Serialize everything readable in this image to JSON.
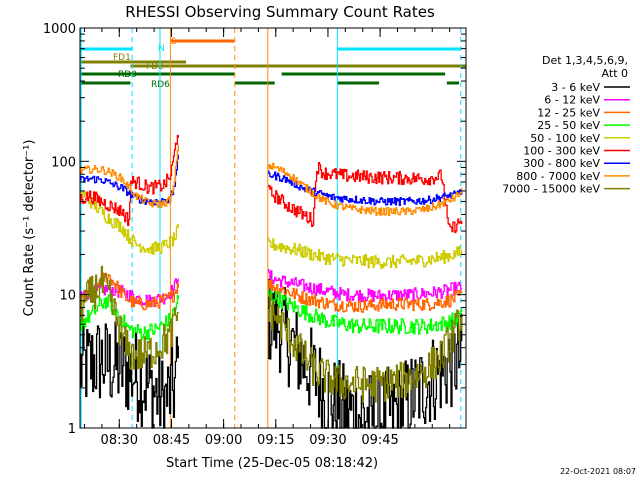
{
  "chart_data": {
    "type": "line",
    "title": "RHESSI Observing Summary Count Rates",
    "xlabel": "Start Time (25-Dec-05 08:18:42)",
    "ylabel": "Count Rate (s⁻¹ detector⁻¹)",
    "y_scale": "log",
    "ylim": [
      1,
      1000
    ],
    "y_ticks": [
      "1",
      "10",
      "100",
      "1000"
    ],
    "xlim_minutes_from_start": [
      0,
      111
    ],
    "x_ticks": [
      {
        "label": "08:30",
        "minute": 11.3
      },
      {
        "label": "08:45",
        "minute": 26.3
      },
      {
        "label": "09:00",
        "minute": 41.3
      },
      {
        "label": "09:15",
        "minute": 56.3
      },
      {
        "label": "09:30",
        "minute": 71.3
      },
      {
        "label": "09:45",
        "minute": 86.3
      }
    ],
    "legend": {
      "header": [
        "Det 1,3,4,5,6,9,",
        "Att 0"
      ],
      "placement": "right"
    },
    "gaps_minutes": [
      [
        28.5,
        54.0
      ]
    ],
    "series": [
      {
        "name": "3 - 6 keV",
        "color": "#000000",
        "noise": 0.35,
        "points": [
          [
            0,
            2.8
          ],
          [
            5,
            3.2
          ],
          [
            12,
            2.8
          ],
          [
            16,
            2.5
          ],
          [
            20,
            2.0
          ],
          [
            24,
            1.6
          ],
          [
            27,
            2.0
          ],
          [
            28,
            3
          ],
          [
            54,
            6.5
          ],
          [
            57,
            6.0
          ],
          [
            60,
            4.5
          ],
          [
            64,
            3.2
          ],
          [
            68,
            2.3
          ],
          [
            72,
            1.6
          ],
          [
            78,
            1.3
          ],
          [
            85,
            1.2
          ],
          [
            92,
            1.4
          ],
          [
            98,
            2.0
          ],
          [
            104,
            2.7
          ],
          [
            108,
            3.2
          ],
          [
            110,
            3.4
          ]
        ]
      },
      {
        "name": "6 - 12 keV",
        "color": "#ff00ff",
        "noise": 0.05,
        "points": [
          [
            0,
            10
          ],
          [
            4,
            10.5
          ],
          [
            8,
            11
          ],
          [
            12,
            10.5
          ],
          [
            16,
            9.5
          ],
          [
            20,
            9
          ],
          [
            24,
            9.5
          ],
          [
            27,
            11
          ],
          [
            28,
            14
          ],
          [
            54,
            14
          ],
          [
            56,
            13
          ],
          [
            62,
            12
          ],
          [
            68,
            11
          ],
          [
            76,
            10
          ],
          [
            86,
            9.8
          ],
          [
            96,
            10
          ],
          [
            104,
            10.5
          ],
          [
            110,
            11.5
          ]
        ]
      },
      {
        "name": "12 - 25 keV",
        "color": "#ff6600",
        "noise": 0.05,
        "points": [
          [
            0,
            9
          ],
          [
            3,
            10
          ],
          [
            6,
            13
          ],
          [
            8,
            14
          ],
          [
            10,
            12
          ],
          [
            13,
            9.5
          ],
          [
            16,
            8.5
          ],
          [
            20,
            8.5
          ],
          [
            24,
            9
          ],
          [
            27,
            10
          ],
          [
            28,
            12
          ],
          [
            54,
            12
          ],
          [
            58,
            11
          ],
          [
            64,
            9.5
          ],
          [
            72,
            8.5
          ],
          [
            80,
            8.2
          ],
          [
            90,
            8.5
          ],
          [
            100,
            8.5
          ],
          [
            106,
            9
          ],
          [
            110,
            10
          ]
        ]
      },
      {
        "name": "25 - 50 keV",
        "color": "#00ff00",
        "noise": 0.06,
        "points": [
          [
            0,
            6
          ],
          [
            3,
            7
          ],
          [
            7,
            9
          ],
          [
            9,
            8.5
          ],
          [
            11,
            7
          ],
          [
            14,
            5.5
          ],
          [
            18,
            5.2
          ],
          [
            22,
            5.5
          ],
          [
            26,
            6.5
          ],
          [
            28,
            9
          ],
          [
            54,
            10
          ],
          [
            58,
            9
          ],
          [
            64,
            7.5
          ],
          [
            72,
            6.2
          ],
          [
            80,
            5.8
          ],
          [
            90,
            5.8
          ],
          [
            100,
            5.8
          ],
          [
            106,
            6.2
          ],
          [
            110,
            7
          ]
        ]
      },
      {
        "name": "50 - 100 keV",
        "color": "#cccc00",
        "noise": 0.05,
        "points": [
          [
            0,
            60
          ],
          [
            3,
            50
          ],
          [
            6,
            42
          ],
          [
            9,
            36
          ],
          [
            12,
            32
          ],
          [
            14,
            27
          ],
          [
            16,
            24
          ],
          [
            20,
            22
          ],
          [
            24,
            23
          ],
          [
            27,
            26
          ],
          [
            28,
            30
          ],
          [
            54,
            24
          ],
          [
            58,
            23
          ],
          [
            64,
            21
          ],
          [
            70,
            19
          ],
          [
            78,
            18
          ],
          [
            88,
            17.5
          ],
          [
            98,
            18
          ],
          [
            104,
            19
          ],
          [
            110,
            21
          ]
        ]
      },
      {
        "name": "100 - 300 keV",
        "color": "#ff0000",
        "noise": 0.05,
        "points": [
          [
            0,
            52
          ],
          [
            3,
            55
          ],
          [
            6,
            50
          ],
          [
            9,
            46
          ],
          [
            12,
            42
          ],
          [
            14,
            36
          ],
          [
            14.5,
            70
          ],
          [
            16,
            70
          ],
          [
            20,
            63
          ],
          [
            24,
            66
          ],
          [
            26,
            78
          ],
          [
            27,
            110
          ],
          [
            28,
            165
          ],
          [
            54,
            60
          ],
          [
            56,
            55
          ],
          [
            60,
            46
          ],
          [
            64,
            40
          ],
          [
            67,
            36
          ],
          [
            68,
            92
          ],
          [
            70,
            82
          ],
          [
            76,
            78
          ],
          [
            84,
            76
          ],
          [
            92,
            75
          ],
          [
            100,
            74
          ],
          [
            104,
            78
          ],
          [
            106,
            30
          ],
          [
            108,
            33
          ],
          [
            110,
            36
          ]
        ]
      },
      {
        "name": "300 - 800 keV",
        "color": "#0000ff",
        "noise": 0.03,
        "points": [
          [
            0,
            72
          ],
          [
            3,
            74
          ],
          [
            6,
            73
          ],
          [
            9,
            68
          ],
          [
            12,
            63
          ],
          [
            14,
            58
          ],
          [
            16,
            53
          ],
          [
            20,
            50
          ],
          [
            24,
            50
          ],
          [
            26,
            53
          ],
          [
            27,
            62
          ],
          [
            28,
            105
          ],
          [
            54,
            80
          ],
          [
            56,
            78
          ],
          [
            60,
            72
          ],
          [
            64,
            63
          ],
          [
            68,
            58
          ],
          [
            72,
            54
          ],
          [
            78,
            52
          ],
          [
            86,
            50
          ],
          [
            94,
            50
          ],
          [
            100,
            51
          ],
          [
            104,
            54
          ],
          [
            108,
            56
          ],
          [
            110,
            62
          ]
        ]
      },
      {
        "name": "800 - 7000 keV",
        "color": "#ff8c00",
        "noise": 0.03,
        "points": [
          [
            0,
            85
          ],
          [
            3,
            87
          ],
          [
            6,
            87
          ],
          [
            9,
            82
          ],
          [
            12,
            74
          ],
          [
            14,
            64
          ],
          [
            16,
            55
          ],
          [
            20,
            48
          ],
          [
            24,
            48
          ],
          [
            26,
            52
          ],
          [
            27,
            64
          ],
          [
            28,
            125
          ],
          [
            54,
            93
          ],
          [
            56,
            90
          ],
          [
            60,
            80
          ],
          [
            64,
            66
          ],
          [
            68,
            55
          ],
          [
            72,
            48
          ],
          [
            78,
            44
          ],
          [
            86,
            42
          ],
          [
            94,
            42
          ],
          [
            100,
            44
          ],
          [
            104,
            48
          ],
          [
            108,
            54
          ],
          [
            110,
            60
          ]
        ]
      },
      {
        "name": "7000 - 15000 keV",
        "color": "#808000",
        "noise": 0.14,
        "points": [
          [
            0,
            8
          ],
          [
            3,
            10
          ],
          [
            6,
            12
          ],
          [
            8,
            10
          ],
          [
            10,
            7
          ],
          [
            12,
            5
          ],
          [
            14,
            3.6
          ],
          [
            18,
            3.5
          ],
          [
            22,
            4
          ],
          [
            26,
            5
          ],
          [
            28,
            7
          ],
          [
            54,
            8
          ],
          [
            56,
            7
          ],
          [
            60,
            5
          ],
          [
            64,
            3.5
          ],
          [
            68,
            2.6
          ],
          [
            74,
            2.2
          ],
          [
            84,
            2.1
          ],
          [
            94,
            2.3
          ],
          [
            100,
            2.8
          ],
          [
            104,
            3.5
          ],
          [
            108,
            5.5
          ],
          [
            110,
            7
          ]
        ]
      }
    ],
    "flags": [
      {
        "label": "S",
        "color": "#ff6600",
        "segments": [
          [
            26.0,
            44.5
          ]
        ]
      },
      {
        "label": "N",
        "color": "#00e5ff",
        "segments": [
          [
            0,
            15.0
          ],
          [
            74.0,
            109.5
          ]
        ]
      },
      {
        "label": "FD1",
        "color": "#808000",
        "segments": [
          [
            0,
            30.5
          ]
        ]
      },
      {
        "label": "FD2",
        "color": "#808000",
        "segments": [
          [
            14.5,
            111
          ]
        ]
      },
      {
        "label": "RD0",
        "color": "#006600",
        "segments": [
          [
            0,
            44.5
          ],
          [
            58.0,
            105.0
          ]
        ]
      },
      {
        "label": "RD6",
        "color": "#006600",
        "segments": [
          [
            0,
            14.5
          ],
          [
            44.5,
            56.0
          ],
          [
            74.0,
            86.0
          ],
          [
            105.5,
            109.0
          ]
        ]
      }
    ],
    "vlines": [
      {
        "minute": 0.3,
        "color": "#00e5ff",
        "style": "solid"
      },
      {
        "minute": 15.0,
        "color": "#00e5ff",
        "style": "dashed"
      },
      {
        "minute": 23.0,
        "color": "#00e5ff",
        "style": "solid"
      },
      {
        "minute": 26.0,
        "color": "#ff8c00",
        "style": "solid"
      },
      {
        "minute": 44.5,
        "color": "#ff8c00",
        "style": "dashed"
      },
      {
        "minute": 54.0,
        "color": "#ff8c00",
        "style": "solid"
      },
      {
        "minute": 74.0,
        "color": "#00e5ff",
        "style": "solid"
      },
      {
        "minute": 109.5,
        "color": "#00e5ff",
        "style": "dashed"
      }
    ],
    "footer_timestamp": "22-Oct-2021 08:07"
  }
}
